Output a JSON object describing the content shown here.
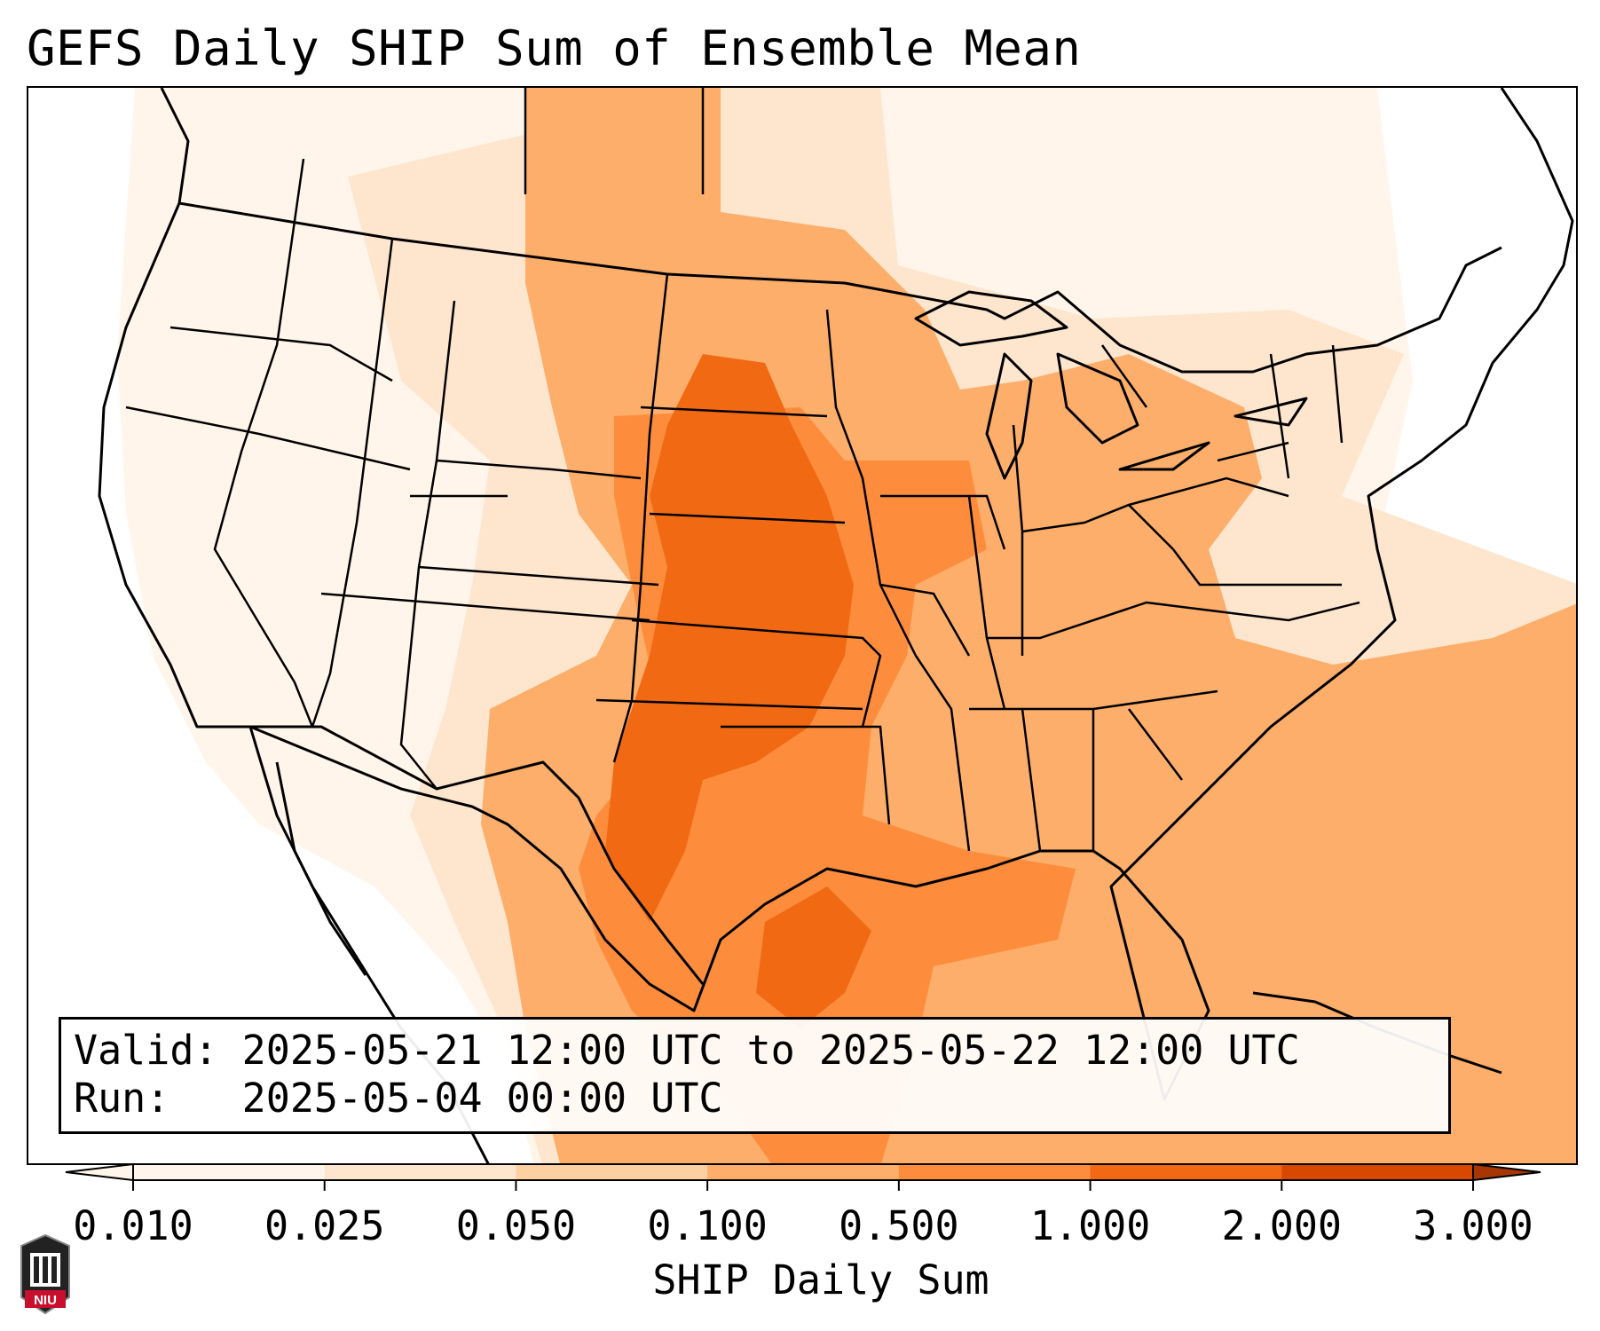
{
  "title": "GEFS Daily SHIP Sum of Ensemble Mean",
  "info": {
    "valid_label": "Valid:",
    "valid_value": "2025-05-21 12:00 UTC to 2025-05-22 12:00 UTC",
    "run_label": "Run:",
    "run_value": "2025-05-04 00:00 UTC"
  },
  "colorbar": {
    "label": "SHIP Daily Sum",
    "ticks": [
      "0.010",
      "0.025",
      "0.050",
      "0.100",
      "0.500",
      "1.000",
      "2.000",
      "3.000"
    ],
    "colors": [
      "#fff5eb",
      "#fee6ce",
      "#fdd0a2",
      "#fdae6b",
      "#fd8d3c",
      "#f16913",
      "#d94801",
      "#a63603"
    ],
    "extend": "both"
  },
  "logo": {
    "text": "NIU",
    "colors": {
      "shield": "#c8102e",
      "building": "#222222"
    }
  },
  "map": {
    "projection": "Lambert conformal (CONUS)",
    "fill_colors": {
      "lightest": "#fff5eb",
      "light": "#fee6ce",
      "medium": "#fdd0a2",
      "orange": "#fdae6b",
      "dark_orange": "#fd8d3c",
      "darkest": "#f16913"
    }
  }
}
